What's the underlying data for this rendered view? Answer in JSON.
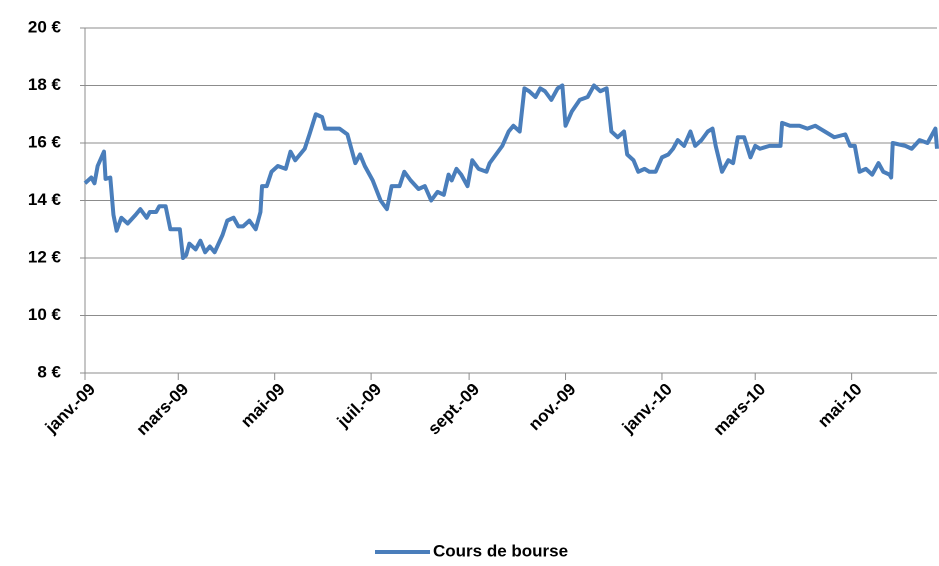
{
  "chart_data": {
    "type": "line",
    "xlim": [
      0,
      539
    ],
    "xticks": [
      {
        "value": 0,
        "label": "janv.-09"
      },
      {
        "value": 59,
        "label": "mars-09"
      },
      {
        "value": 120,
        "label": "mai-09"
      },
      {
        "value": 181,
        "label": "juil.-09"
      },
      {
        "value": 243,
        "label": "sept.-09"
      },
      {
        "value": 304,
        "label": "nov.-09"
      },
      {
        "value": 365,
        "label": "janv.-10"
      },
      {
        "value": 424,
        "label": "mars-10"
      },
      {
        "value": 485,
        "label": "mai-10"
      }
    ],
    "ylim": [
      8,
      20
    ],
    "yticks": [
      {
        "value": 8,
        "label": "8 €"
      },
      {
        "value": 10,
        "label": "10 €"
      },
      {
        "value": 12,
        "label": "12 €"
      },
      {
        "value": 14,
        "label": "14 €"
      },
      {
        "value": 16,
        "label": "16 €"
      },
      {
        "value": 18,
        "label": "18 €"
      },
      {
        "value": 20,
        "label": "20 €"
      }
    ],
    "grid": true,
    "legend": "bottom",
    "x": [
      0,
      4,
      6,
      8,
      12,
      13,
      16,
      18,
      20,
      23,
      27,
      32,
      35,
      39,
      41,
      45,
      47,
      51,
      54,
      60,
      62,
      64,
      66,
      70,
      73,
      76,
      79,
      82,
      87,
      90,
      94,
      97,
      100,
      104,
      108,
      111,
      112,
      115,
      118,
      122,
      127,
      130,
      133,
      136,
      139,
      142,
      146,
      150,
      152,
      156,
      161,
      166,
      171,
      174,
      177,
      182,
      187,
      191,
      194,
      199,
      202,
      206,
      211,
      215,
      219,
      223,
      227,
      230,
      232,
      235,
      238,
      242,
      245,
      249,
      254,
      256,
      260,
      264,
      268,
      271,
      275,
      278,
      281,
      285,
      288,
      291,
      295,
      299,
      302,
      304,
      308,
      313,
      318,
      322,
      326,
      330,
      333,
      337,
      341,
      343,
      347,
      350,
      354,
      357,
      361,
      365,
      369,
      372,
      375,
      379,
      383,
      386,
      390,
      394,
      397,
      399,
      403,
      407,
      410,
      413,
      417,
      421,
      424,
      427,
      433,
      440,
      441,
      446,
      452,
      457,
      462,
      468,
      474,
      481,
      484,
      487,
      490,
      494,
      498,
      502,
      505,
      509,
      510,
      511,
      519,
      523,
      528,
      533,
      538,
      539
    ],
    "series": [
      {
        "name": "Cours de bourse",
        "color": "#4a7ebb",
        "values": [
          14.6,
          14.8,
          14.6,
          15.2,
          15.7,
          14.75,
          14.8,
          13.5,
          12.95,
          13.4,
          13.2,
          13.5,
          13.7,
          13.4,
          13.6,
          13.6,
          13.8,
          13.8,
          13.0,
          13.0,
          12.0,
          12.1,
          12.5,
          12.3,
          12.6,
          12.2,
          12.4,
          12.2,
          12.8,
          13.3,
          13.4,
          13.1,
          13.1,
          13.3,
          13.0,
          13.6,
          14.5,
          14.5,
          15.0,
          15.2,
          15.1,
          15.7,
          15.4,
          15.6,
          15.8,
          16.3,
          17.0,
          16.9,
          16.5,
          16.5,
          16.5,
          16.3,
          15.3,
          15.6,
          15.2,
          14.7,
          14.0,
          13.7,
          14.5,
          14.5,
          15.0,
          14.7,
          14.4,
          14.5,
          14.0,
          14.3,
          14.2,
          14.9,
          14.7,
          15.1,
          14.9,
          14.5,
          15.4,
          15.1,
          15.0,
          15.3,
          15.6,
          15.9,
          16.4,
          16.6,
          16.4,
          17.9,
          17.8,
          17.6,
          17.9,
          17.8,
          17.5,
          17.9,
          18.0,
          16.6,
          17.1,
          17.5,
          17.6,
          18.0,
          17.8,
          17.9,
          16.4,
          16.2,
          16.4,
          15.6,
          15.4,
          15.0,
          15.1,
          15.0,
          15.0,
          15.5,
          15.6,
          15.8,
          16.1,
          15.9,
          16.4,
          15.9,
          16.1,
          16.4,
          16.5,
          15.9,
          15.0,
          15.4,
          15.3,
          16.2,
          16.2,
          15.5,
          15.9,
          15.8,
          15.9,
          15.9,
          16.7,
          16.6,
          16.6,
          16.5,
          16.6,
          16.4,
          16.2,
          16.3,
          15.9,
          15.9,
          15.0,
          15.1,
          14.9,
          15.3,
          15.0,
          14.9,
          14.8,
          16.0,
          15.9,
          15.8,
          16.1,
          16.0,
          16.5,
          15.8
        ]
      }
    ]
  }
}
